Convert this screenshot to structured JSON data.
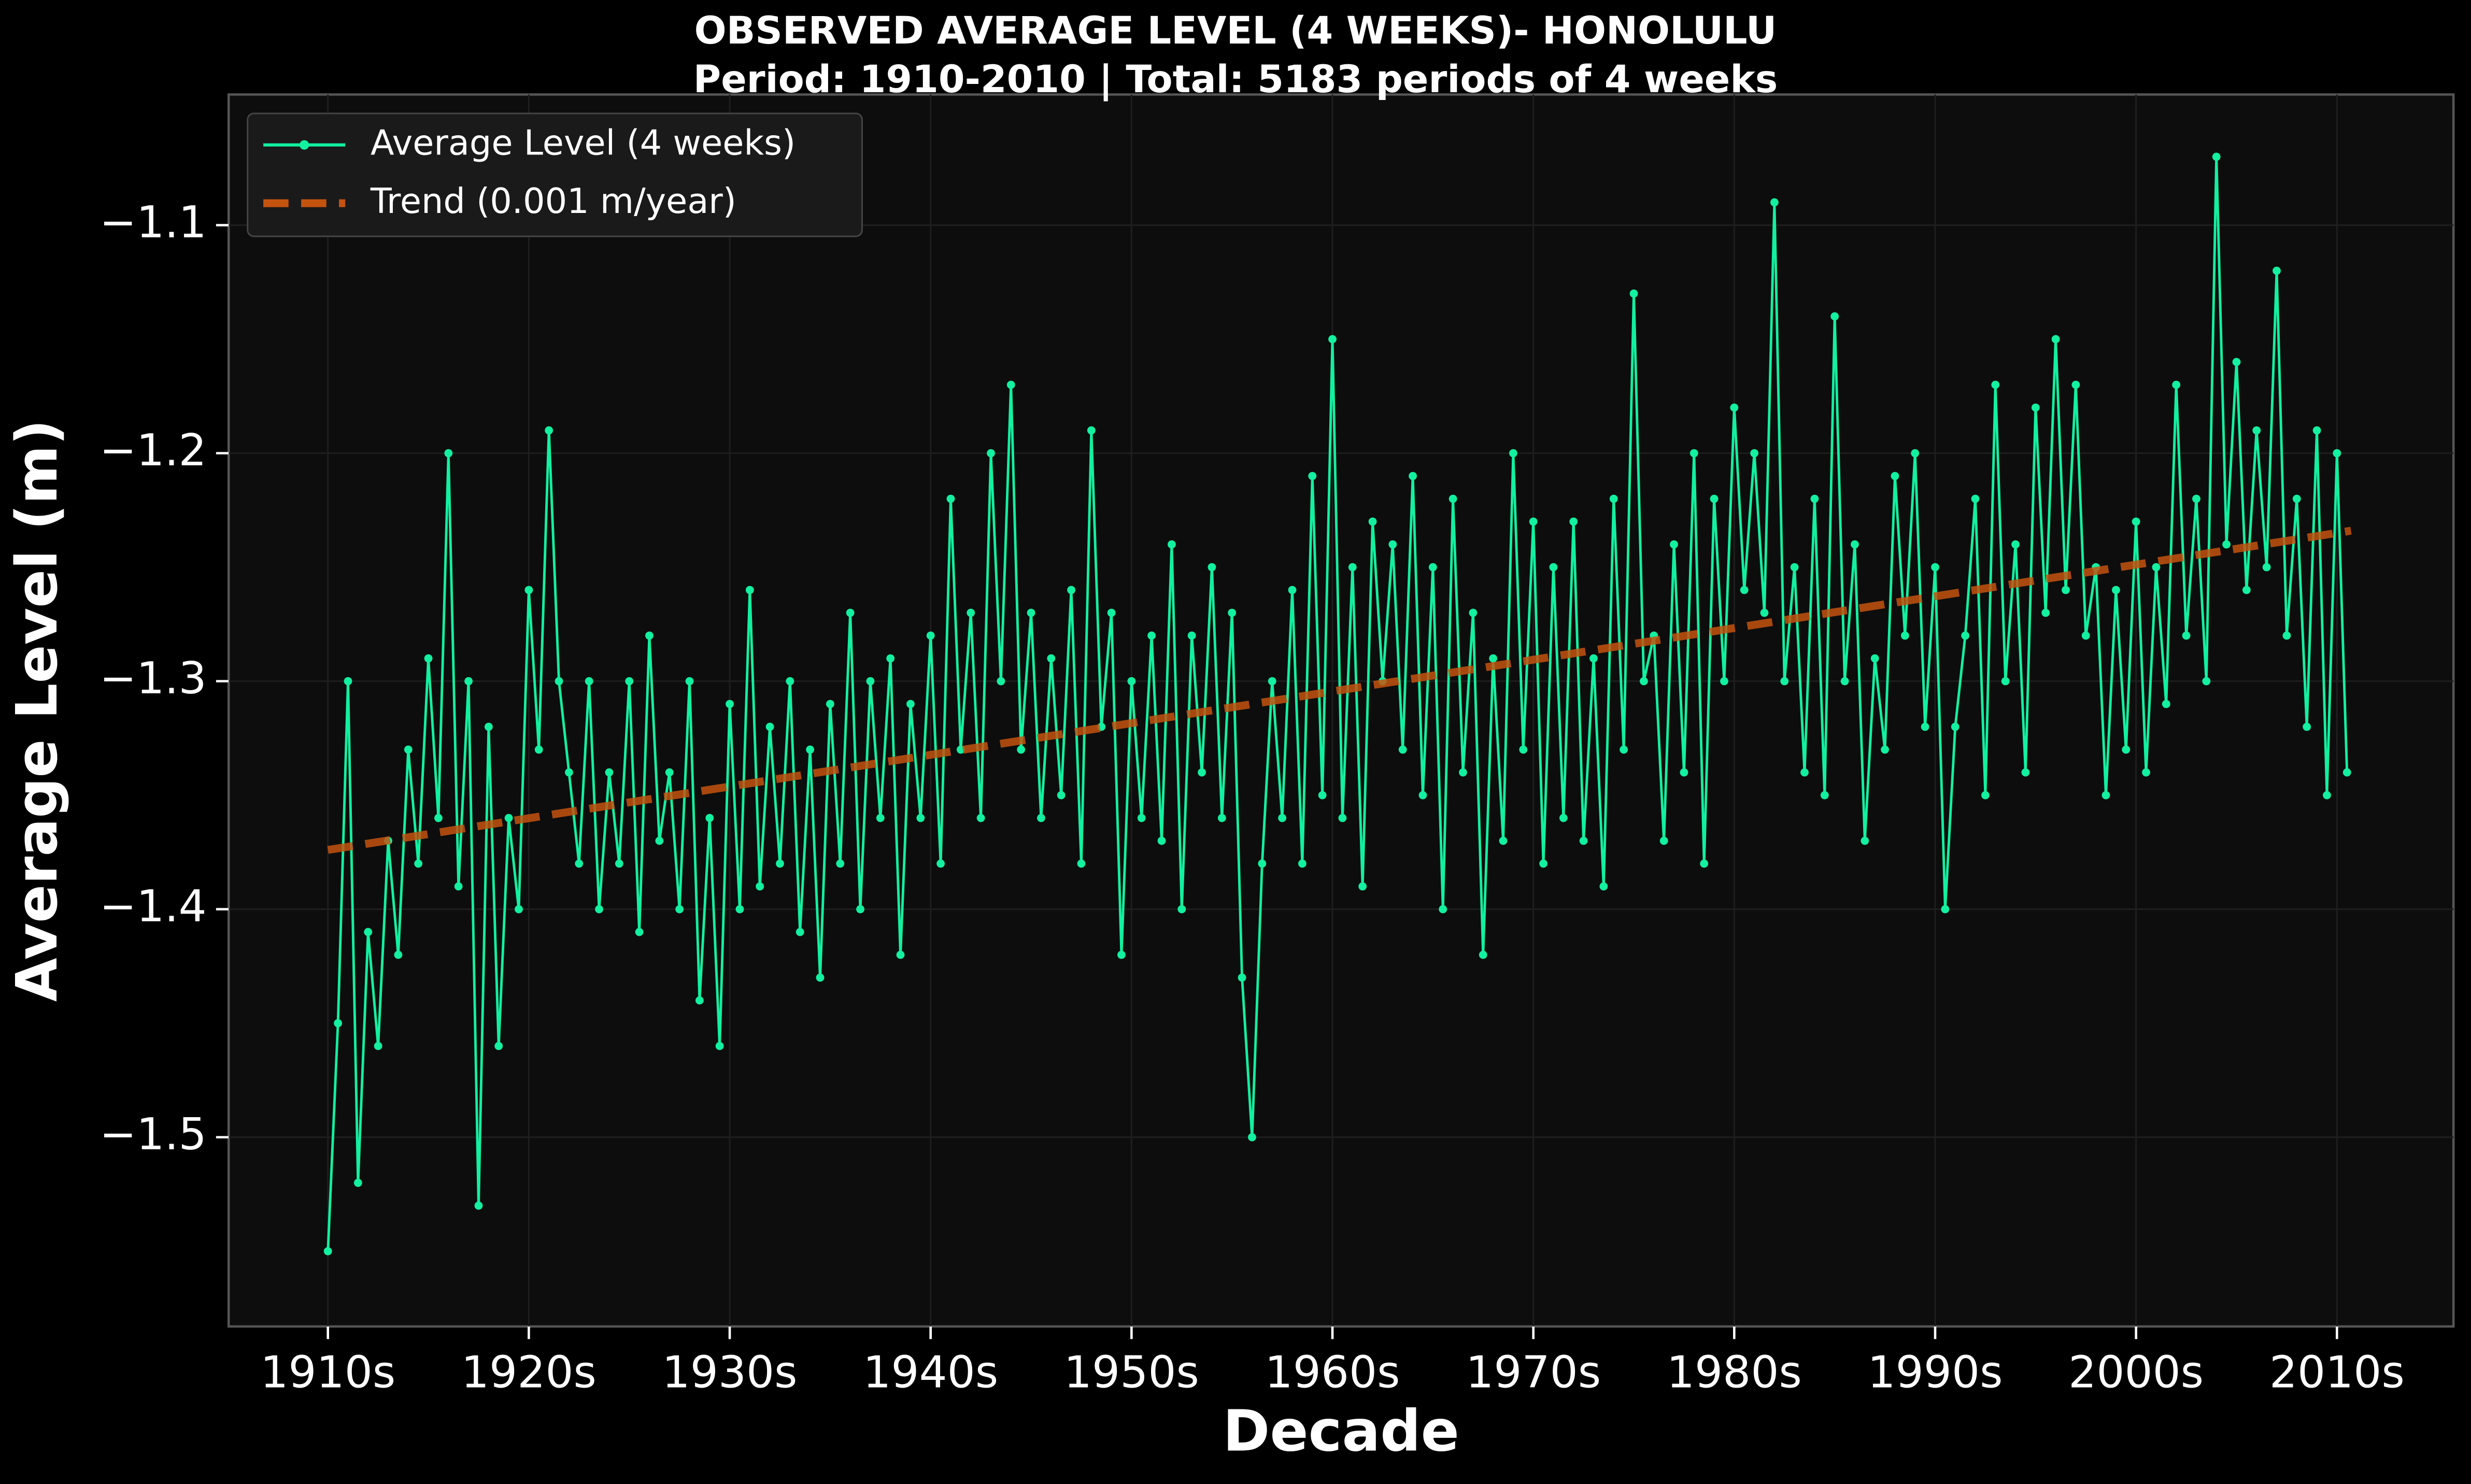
{
  "chart_data": {
    "type": "line",
    "title": "OBSERVED AVERAGE LEVEL (4 WEEKS)- HONOLULU",
    "subtitle": "Period: 1910-2010 | Total: 5183 periods of 4 weeks",
    "x_label": "Decade",
    "y_label": "Average Level (m)",
    "xlim": [
      1905.06,
      2015.8
    ],
    "ylim": [
      -1.583,
      -1.0427
    ],
    "xticks": [
      {
        "value": 1910,
        "label": "1910s"
      },
      {
        "value": 1920,
        "label": "1920s"
      },
      {
        "value": 1930,
        "label": "1930s"
      },
      {
        "value": 1940,
        "label": "1940s"
      },
      {
        "value": 1950,
        "label": "1950s"
      },
      {
        "value": 1960,
        "label": "1960s"
      },
      {
        "value": 1970,
        "label": "1970s"
      },
      {
        "value": 1980,
        "label": "1980s"
      },
      {
        "value": 1990,
        "label": "1990s"
      },
      {
        "value": 2000,
        "label": "2000s"
      },
      {
        "value": 2010,
        "label": "2010s"
      }
    ],
    "yticks": [
      {
        "value": -1.5,
        "label": "−1.5"
      },
      {
        "value": -1.4,
        "label": "−1.4"
      },
      {
        "value": -1.3,
        "label": "−1.3"
      },
      {
        "value": -1.2,
        "label": "−1.2"
      },
      {
        "value": -1.1,
        "label": "−1.1"
      }
    ],
    "grid": true,
    "legend": "upper left",
    "series": [
      {
        "name": "Average Level (4 weeks)",
        "color": "#12f0a0",
        "markers": true,
        "x": [
          1910,
          1910.5,
          1911,
          1911.5,
          1912,
          1912.5,
          1913,
          1913.5,
          1914,
          1914.5,
          1915,
          1915.5,
          1916,
          1916.5,
          1917,
          1917.5,
          1918,
          1918.5,
          1919,
          1919.5,
          1920,
          1920.5,
          1921,
          1921.5,
          1922,
          1922.5,
          1923,
          1923.5,
          1924,
          1924.5,
          1925,
          1925.5,
          1926,
          1926.5,
          1927,
          1927.5,
          1928,
          1928.5,
          1929,
          1929.5,
          1930,
          1930.5,
          1931,
          1931.5,
          1932,
          1932.5,
          1933,
          1933.5,
          1934,
          1934.5,
          1935,
          1935.5,
          1936,
          1936.5,
          1937,
          1937.5,
          1938,
          1938.5,
          1939,
          1939.5,
          1940,
          1940.5,
          1941,
          1941.5,
          1942,
          1942.5,
          1943,
          1943.5,
          1944,
          1944.5,
          1945,
          1945.5,
          1946,
          1946.5,
          1947,
          1947.5,
          1948,
          1948.5,
          1949,
          1949.5,
          1950,
          1950.5,
          1951,
          1951.5,
          1952,
          1952.5,
          1953,
          1953.5,
          1954,
          1954.5,
          1955,
          1955.5,
          1956,
          1956.5,
          1957,
          1957.5,
          1958,
          1958.5,
          1959,
          1959.5,
          1960,
          1960.5,
          1961,
          1961.5,
          1962,
          1962.5,
          1963,
          1963.5,
          1964,
          1964.5,
          1965,
          1965.5,
          1966,
          1966.5,
          1967,
          1967.5,
          1968,
          1968.5,
          1969,
          1969.5,
          1970,
          1970.5,
          1971,
          1971.5,
          1972,
          1972.5,
          1973,
          1973.5,
          1974,
          1974.5,
          1975,
          1975.5,
          1976,
          1976.5,
          1977,
          1977.5,
          1978,
          1978.5,
          1979,
          1979.5,
          1980,
          1980.5,
          1981,
          1981.5,
          1982,
          1982.5,
          1983,
          1983.5,
          1984,
          1984.5,
          1985,
          1985.5,
          1986,
          1986.5,
          1987,
          1987.5,
          1988,
          1988.5,
          1989,
          1989.5,
          1990,
          1990.5,
          1991,
          1991.5,
          1992,
          1992.5,
          1993,
          1993.5,
          1994,
          1994.5,
          1995,
          1995.5,
          1996,
          1996.5,
          1997,
          1997.5,
          1998,
          1998.5,
          1999,
          1999.5,
          2000,
          2000.5,
          2001,
          2001.5,
          2002,
          2002.5,
          2003,
          2003.5,
          2004,
          2004.5,
          2005,
          2005.5,
          2006,
          2006.5,
          2007,
          2007.5,
          2008,
          2008.5,
          2009,
          2009.5,
          2010,
          2010.5
        ],
        "values": [
          -1.55,
          -1.45,
          -1.3,
          -1.52,
          -1.41,
          -1.46,
          -1.37,
          -1.42,
          -1.33,
          -1.38,
          -1.29,
          -1.36,
          -1.2,
          -1.39,
          -1.3,
          -1.53,
          -1.32,
          -1.46,
          -1.36,
          -1.4,
          -1.26,
          -1.33,
          -1.19,
          -1.3,
          -1.34,
          -1.38,
          -1.3,
          -1.4,
          -1.34,
          -1.38,
          -1.3,
          -1.41,
          -1.28,
          -1.37,
          -1.34,
          -1.4,
          -1.3,
          -1.44,
          -1.36,
          -1.46,
          -1.31,
          -1.4,
          -1.26,
          -1.39,
          -1.32,
          -1.38,
          -1.3,
          -1.41,
          -1.33,
          -1.43,
          -1.31,
          -1.38,
          -1.27,
          -1.4,
          -1.3,
          -1.36,
          -1.29,
          -1.42,
          -1.31,
          -1.36,
          -1.28,
          -1.38,
          -1.22,
          -1.33,
          -1.27,
          -1.36,
          -1.2,
          -1.3,
          -1.17,
          -1.33,
          -1.27,
          -1.36,
          -1.29,
          -1.35,
          -1.26,
          -1.38,
          -1.19,
          -1.32,
          -1.27,
          -1.42,
          -1.3,
          -1.36,
          -1.28,
          -1.37,
          -1.24,
          -1.4,
          -1.28,
          -1.34,
          -1.25,
          -1.36,
          -1.27,
          -1.43,
          -1.5,
          -1.38,
          -1.3,
          -1.36,
          -1.26,
          -1.38,
          -1.21,
          -1.35,
          -1.15,
          -1.36,
          -1.25,
          -1.39,
          -1.23,
          -1.3,
          -1.24,
          -1.33,
          -1.21,
          -1.35,
          -1.25,
          -1.4,
          -1.22,
          -1.34,
          -1.27,
          -1.42,
          -1.29,
          -1.37,
          -1.2,
          -1.33,
          -1.23,
          -1.38,
          -1.25,
          -1.36,
          -1.23,
          -1.37,
          -1.29,
          -1.39,
          -1.22,
          -1.33,
          -1.13,
          -1.3,
          -1.28,
          -1.37,
          -1.24,
          -1.34,
          -1.2,
          -1.38,
          -1.22,
          -1.3,
          -1.18,
          -1.26,
          -1.2,
          -1.27,
          -1.09,
          -1.3,
          -1.25,
          -1.34,
          -1.22,
          -1.35,
          -1.14,
          -1.3,
          -1.24,
          -1.37,
          -1.29,
          -1.33,
          -1.21,
          -1.28,
          -1.2,
          -1.32,
          -1.25,
          -1.4,
          -1.32,
          -1.28,
          -1.22,
          -1.35,
          -1.17,
          -1.3,
          -1.24,
          -1.34,
          -1.18,
          -1.27,
          -1.15,
          -1.26,
          -1.17,
          -1.28,
          -1.25,
          -1.35,
          -1.26,
          -1.33,
          -1.23,
          -1.34,
          -1.25,
          -1.31,
          -1.17,
          -1.28,
          -1.22,
          -1.3,
          -1.07,
          -1.24,
          -1.16,
          -1.26,
          -1.19,
          -1.25,
          -1.12,
          -1.28,
          -1.22,
          -1.32,
          -1.19,
          -1.35,
          -1.2,
          -1.34
        ]
      },
      {
        "name": "Trend (0.001 m/year)",
        "color": "#c4530f",
        "dashed": true,
        "x": [
          1910,
          2010.7
        ],
        "values": [
          -1.374,
          -1.234
        ]
      }
    ]
  }
}
